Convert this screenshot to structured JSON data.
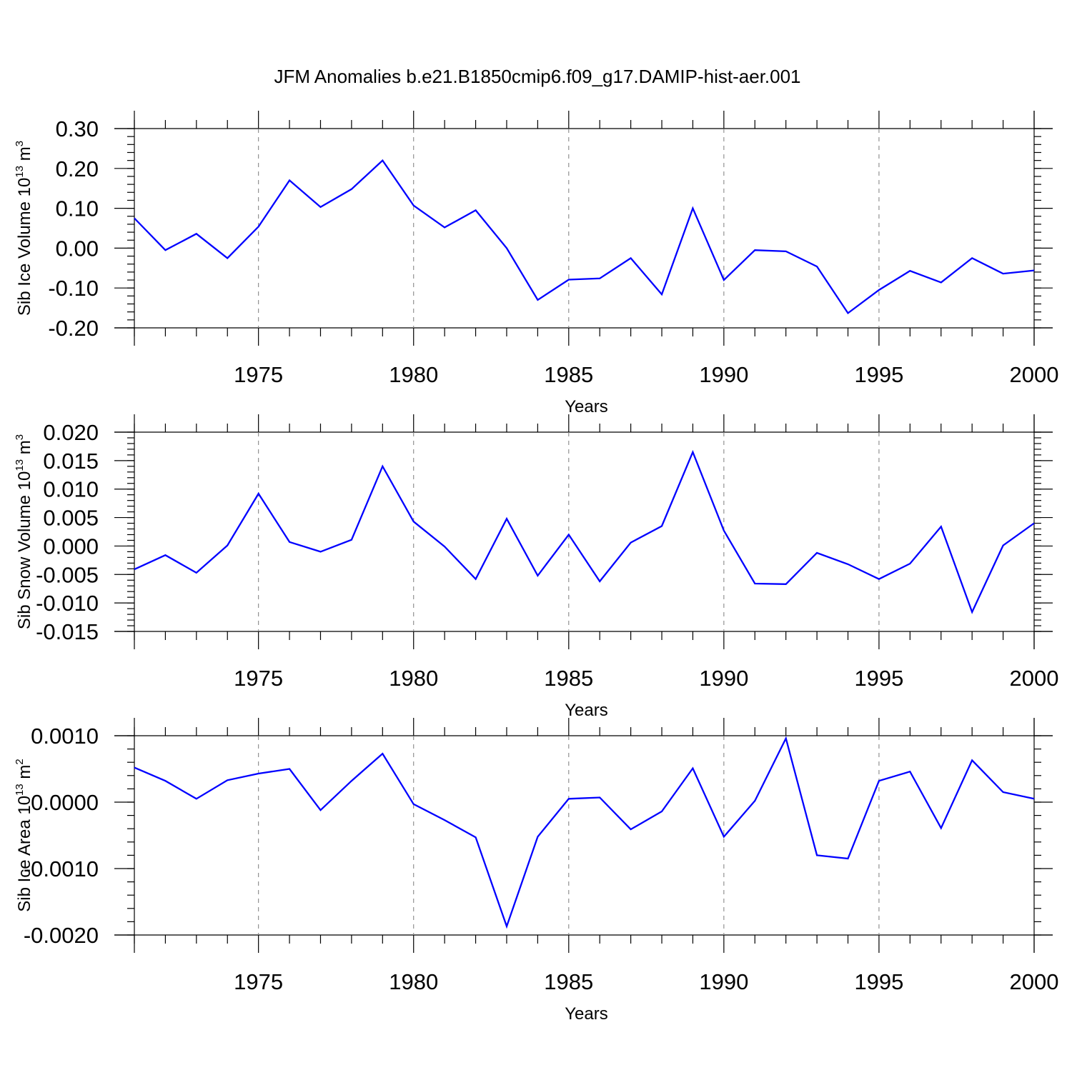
{
  "chart_data": {
    "title": "JFM Anomalies b.e21.B1850cmip6.f09_g17.DAMIP-hist-aer.001",
    "x": [
      1971,
      1972,
      1973,
      1974,
      1975,
      1976,
      1977,
      1978,
      1979,
      1980,
      1981,
      1982,
      1983,
      1984,
      1985,
      1986,
      1987,
      1988,
      1989,
      1990,
      1991,
      1992,
      1993,
      1994,
      1995,
      1996,
      1997,
      1998,
      1999,
      2000
    ],
    "xlim": [
      1971,
      2000
    ],
    "xticks": [
      "1975",
      "1980",
      "1985",
      "1990",
      "1995",
      "2000"
    ],
    "series_color": "#0000ff",
    "panels": [
      {
        "type": "line",
        "ylabel_main": "Sib Ice Volume 10",
        "ylabel_exp": "13",
        "ylabel_unit": " m",
        "ylabel_unit_exp": "3",
        "xlabel": "Years",
        "ylim": [
          -0.2,
          0.3
        ],
        "yticks": [
          "-0.20",
          "-0.10",
          "0.00",
          "0.10",
          "0.20",
          "0.30"
        ],
        "y_minor_step": 0.02,
        "values": [
          0.075,
          -0.005,
          0.036,
          -0.025,
          0.054,
          0.17,
          0.103,
          0.148,
          0.22,
          0.107,
          0.052,
          0.095,
          0.0,
          -0.13,
          -0.079,
          -0.076,
          -0.025,
          -0.116,
          0.1,
          -0.08,
          -0.005,
          -0.008,
          -0.046,
          -0.163,
          -0.105,
          -0.057,
          -0.086,
          -0.025,
          -0.064,
          -0.056
        ]
      },
      {
        "type": "line",
        "ylabel_main": "Sib Snow Volume 10",
        "ylabel_exp": "13",
        "ylabel_unit": " m",
        "ylabel_unit_exp": "3",
        "xlabel": "Years",
        "ylim": [
          -0.015,
          0.02
        ],
        "yticks": [
          "-0.015",
          "-0.010",
          "-0.005",
          "0.000",
          "0.005",
          "0.010",
          "0.015",
          "0.020"
        ],
        "y_minor_step": 0.001,
        "values": [
          -0.0041,
          -0.0016,
          -0.0047,
          0.0001,
          0.0092,
          0.0007,
          -0.001,
          0.0011,
          0.014,
          0.0043,
          -0.0001,
          -0.0058,
          0.0048,
          -0.0052,
          0.002,
          -0.0062,
          0.0006,
          0.0035,
          0.0165,
          0.0027,
          -0.0066,
          -0.0067,
          -0.0012,
          -0.0032,
          -0.0058,
          -0.0031,
          0.0034,
          -0.0116,
          0.0001,
          0.004
        ]
      },
      {
        "type": "line",
        "ylabel_main": "Sib Ice Area 10",
        "ylabel_exp": "13",
        "ylabel_unit": " m",
        "ylabel_unit_exp": "2",
        "xlabel": "Years",
        "ylim": [
          -0.002,
          0.001
        ],
        "yticks": [
          "-0.0020",
          "-0.0010",
          "0.0000",
          "0.0010"
        ],
        "y_minor_step": 0.0002,
        "values": [
          0.00052,
          0.00032,
          5e-05,
          0.00033,
          0.00043,
          0.0005,
          -0.00012,
          0.00032,
          0.00073,
          -3e-05,
          -0.00027,
          -0.00053,
          -0.00187,
          -0.00052,
          5e-05,
          7e-05,
          -0.00041,
          -0.00014,
          0.00051,
          -0.00052,
          2e-05,
          0.00096,
          -0.0008,
          -0.00085,
          0.00032,
          0.00046,
          -0.00039,
          0.00063,
          0.00015,
          5e-05
        ]
      }
    ]
  }
}
